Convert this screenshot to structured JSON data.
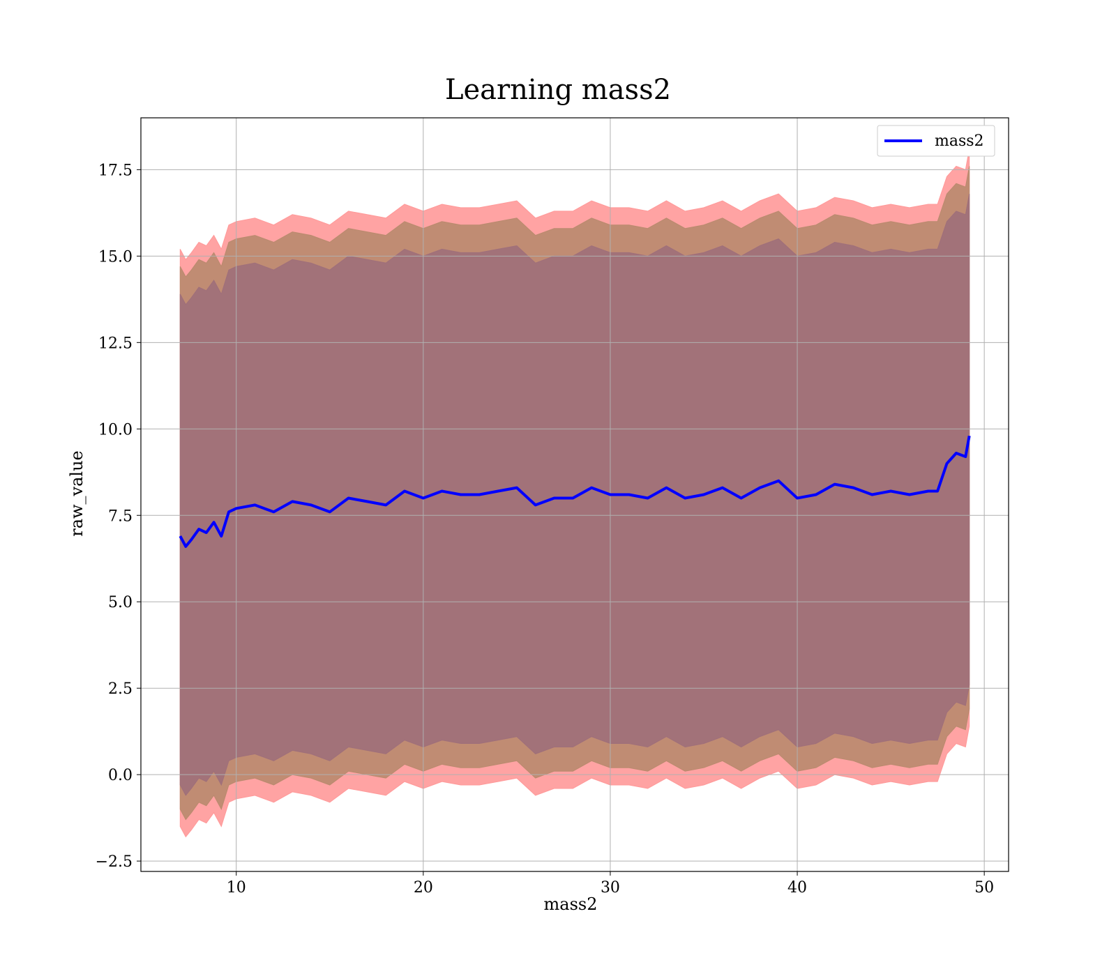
{
  "chart_data": {
    "type": "line",
    "title": "Learning mass2",
    "xlabel": "mass2",
    "ylabel": "raw_value",
    "xlim": [
      4.9,
      51.3
    ],
    "ylim": [
      -2.8,
      19.0
    ],
    "xticks": [
      10,
      20,
      30,
      40,
      50
    ],
    "yticks": [
      -2.5,
      0.0,
      2.5,
      5.0,
      7.5,
      10.0,
      12.5,
      15.0,
      17.5
    ],
    "xtick_labels": [
      "10",
      "20",
      "30",
      "40",
      "50"
    ],
    "ytick_labels": [
      "−2.5",
      "0.0",
      "2.5",
      "5.0",
      "7.5",
      "10.0",
      "12.5",
      "15.0",
      "17.5"
    ],
    "grid": true,
    "legend": {
      "position": "top-right",
      "entries": [
        "mass2"
      ]
    },
    "series": [
      {
        "name": "mass2",
        "color": "#0000ff",
        "x": [
          7.0,
          7.3,
          7.6,
          8.0,
          8.4,
          8.8,
          9.2,
          9.6,
          10.0,
          11.0,
          12.0,
          13.0,
          14.0,
          15.0,
          16.0,
          17.0,
          18.0,
          19.0,
          20.0,
          21.0,
          22.0,
          23.0,
          24.0,
          25.0,
          26.0,
          27.0,
          28.0,
          29.0,
          30.0,
          31.0,
          32.0,
          33.0,
          34.0,
          35.0,
          36.0,
          37.0,
          38.0,
          39.0,
          40.0,
          41.0,
          42.0,
          43.0,
          44.0,
          45.0,
          46.0,
          47.0,
          47.5,
          48.0,
          48.5,
          49.0,
          49.2
        ],
        "y": [
          6.9,
          6.6,
          6.8,
          7.1,
          7.0,
          7.3,
          6.9,
          7.6,
          7.7,
          7.8,
          7.6,
          7.9,
          7.8,
          7.6,
          8.0,
          7.9,
          7.8,
          8.2,
          8.0,
          8.2,
          8.1,
          8.1,
          8.2,
          8.3,
          7.8,
          8.0,
          8.0,
          8.3,
          8.1,
          8.1,
          8.0,
          8.3,
          8.0,
          8.1,
          8.3,
          8.0,
          8.3,
          8.5,
          8.0,
          8.1,
          8.4,
          8.3,
          8.1,
          8.2,
          8.1,
          8.2,
          8.2,
          9.0,
          9.3,
          9.2,
          9.8
        ]
      }
    ],
    "bands": [
      {
        "name": "outer_band",
        "color": "#ff9999",
        "offset_upper": 8.3,
        "offset_lower": 8.4
      },
      {
        "name": "middle_band",
        "color": "#b98a6e",
        "offset_upper": 7.8,
        "offset_lower": 7.9
      },
      {
        "name": "inner_band",
        "color": "#9f6f7a",
        "offset_upper": 7.0,
        "offset_lower": 7.2
      }
    ]
  }
}
